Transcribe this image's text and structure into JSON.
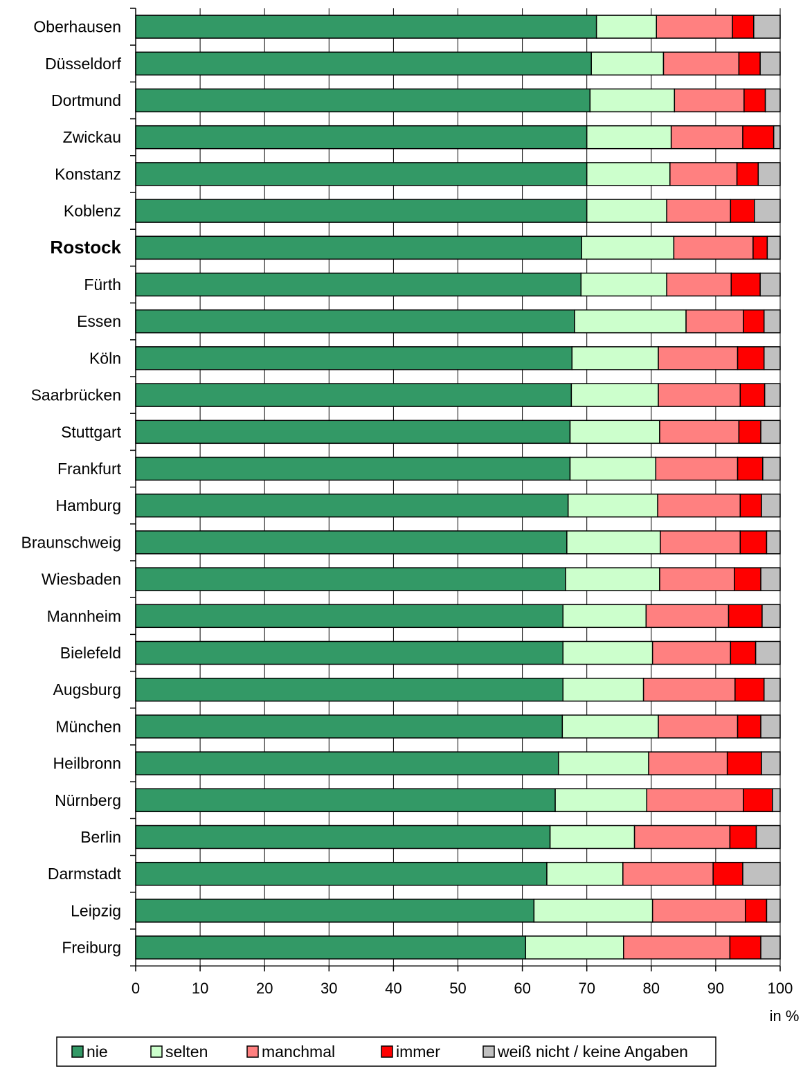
{
  "chart_data": {
    "type": "bar",
    "orientation": "horizontal",
    "stacked": true,
    "categories": [
      "Oberhausen",
      "Düsseldorf",
      "Dortmund",
      "Zwickau",
      "Konstanz",
      "Koblenz",
      "Rostock",
      "Fürth",
      "Essen",
      "Köln",
      "Saarbrücken",
      "Stuttgart",
      "Frankfurt",
      "Hamburg",
      "Braunschweig",
      "Wiesbaden",
      "Mannheim",
      "Bielefeld",
      "Augsburg",
      "München",
      "Heilbronn",
      "Nürnberg",
      "Berlin",
      "Darmstadt",
      "Leipzig",
      "Freiburg"
    ],
    "highlighted_category": "Rostock",
    "series": [
      {
        "name": "nie",
        "color": "#339966",
        "values": [
          71.5,
          70.7,
          70.5,
          70.0,
          70.0,
          70.0,
          69.2,
          69.1,
          68.1,
          67.7,
          67.6,
          67.4,
          67.4,
          67.1,
          66.9,
          66.7,
          66.3,
          66.3,
          66.3,
          66.2,
          65.6,
          65.1,
          64.3,
          63.8,
          61.8,
          60.5
        ]
      },
      {
        "name": "selten",
        "color": "#CCFFCC",
        "values": [
          9.3,
          11.2,
          13.1,
          13.1,
          12.9,
          12.4,
          14.3,
          13.3,
          17.3,
          13.4,
          13.5,
          13.9,
          13.3,
          13.9,
          14.5,
          14.6,
          12.9,
          13.9,
          12.5,
          14.9,
          14.0,
          14.2,
          13.1,
          11.8,
          18.4,
          15.2
        ]
      },
      {
        "name": "manchmal",
        "color": "#FF8080",
        "values": [
          11.8,
          11.7,
          10.8,
          11.1,
          10.4,
          9.9,
          12.3,
          10.0,
          8.9,
          12.3,
          12.7,
          12.3,
          12.7,
          12.8,
          12.4,
          11.6,
          12.8,
          12.1,
          14.2,
          12.3,
          12.2,
          15.0,
          14.8,
          14.0,
          14.4,
          16.5
        ]
      },
      {
        "name": "immer",
        "color": "#FF0000",
        "values": [
          3.3,
          3.3,
          3.3,
          4.8,
          3.3,
          3.7,
          2.2,
          4.5,
          3.2,
          4.1,
          3.8,
          3.4,
          3.9,
          3.3,
          4.1,
          4.1,
          5.2,
          3.9,
          4.5,
          3.6,
          5.3,
          4.5,
          4.1,
          4.6,
          3.3,
          4.8
        ]
      },
      {
        "name": "weiß nicht / keine Angaben",
        "color": "#C0C0C0",
        "values": [
          4.1,
          3.1,
          2.3,
          1.0,
          3.4,
          4.0,
          2.0,
          3.1,
          2.5,
          2.5,
          2.4,
          3.0,
          2.7,
          2.9,
          2.1,
          3.0,
          2.8,
          3.8,
          2.5,
          3.0,
          2.9,
          1.2,
          3.7,
          5.8,
          2.1,
          3.0
        ]
      }
    ],
    "xlim": [
      0,
      100
    ],
    "xticks": [
      0,
      10,
      20,
      30,
      40,
      50,
      60,
      70,
      80,
      90,
      100
    ],
    "x_unit": "in %",
    "grid": "vertical",
    "legend_position": "bottom"
  }
}
